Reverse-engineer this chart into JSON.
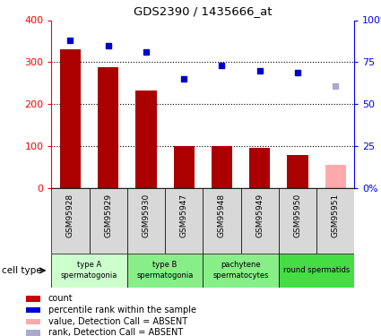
{
  "title": "GDS2390 / 1435666_at",
  "samples": [
    "GSM95928",
    "GSM95929",
    "GSM95930",
    "GSM95947",
    "GSM95948",
    "GSM95949",
    "GSM95950",
    "GSM95951"
  ],
  "bar_values": [
    330,
    288,
    232,
    100,
    100,
    95,
    78,
    55
  ],
  "bar_colors": [
    "#aa0000",
    "#aa0000",
    "#aa0000",
    "#aa0000",
    "#aa0000",
    "#aa0000",
    "#aa0000",
    "#ffaaaa"
  ],
  "rank_values": [
    88,
    85,
    81,
    65,
    73,
    70,
    69,
    61
  ],
  "rank_colors": [
    "#0000cc",
    "#0000cc",
    "#0000cc",
    "#0000cc",
    "#0000cc",
    "#0000cc",
    "#0000cc",
    "#aaaacc"
  ],
  "left_ylim": [
    0,
    400
  ],
  "right_ylim": [
    0,
    100
  ],
  "left_yticks": [
    0,
    100,
    200,
    300,
    400
  ],
  "right_yticks": [
    0,
    25,
    50,
    75,
    100
  ],
  "right_yticklabels": [
    "0%",
    "25",
    "50",
    "75",
    "100%"
  ],
  "cell_type_groups": [
    {
      "label": "type A\nspermatogonia",
      "start": 0,
      "end": 2,
      "color": "#ccffcc"
    },
    {
      "label": "type B\nspermatogonia",
      "start": 2,
      "end": 4,
      "color": "#88ee88"
    },
    {
      "label": "pachytene\nspermatocytes",
      "start": 4,
      "end": 6,
      "color": "#88ee88"
    },
    {
      "label": "round spermatids",
      "start": 6,
      "end": 8,
      "color": "#44dd44"
    }
  ],
  "legend_items": [
    {
      "label": "count",
      "color": "#cc0000"
    },
    {
      "label": "percentile rank within the sample",
      "color": "#0000cc"
    },
    {
      "label": "value, Detection Call = ABSENT",
      "color": "#ffaaaa"
    },
    {
      "label": "rank, Detection Call = ABSENT",
      "color": "#aaaacc"
    }
  ],
  "cell_type_label": "cell type",
  "bar_width": 0.55,
  "figsize": [
    4.25,
    3.75
  ],
  "dpi": 100
}
